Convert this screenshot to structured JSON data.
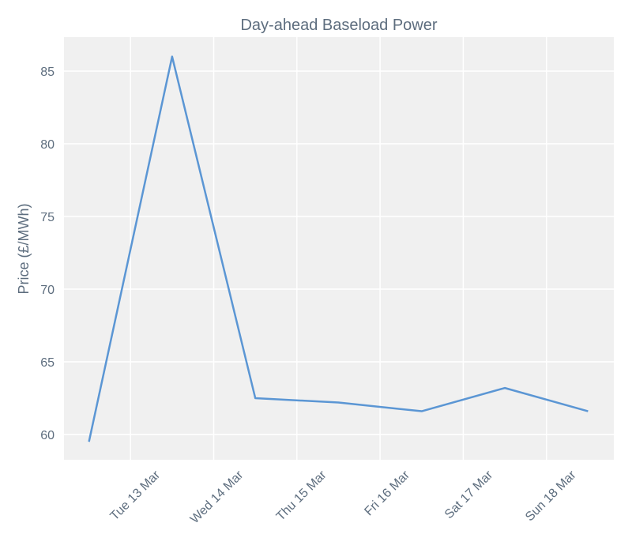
{
  "chart_data": {
    "type": "line",
    "title": "Day-ahead Baseload Power",
    "y_label": "Price (£/MWh)",
    "x": [
      12.5,
      13.5,
      14.5,
      15.5,
      16.5,
      17.5,
      18.5
    ],
    "series": [
      {
        "color": "#5b96d4",
        "values": [
          59.5,
          86.0,
          62.5,
          62.2,
          61.6,
          63.2,
          61.6
        ]
      }
    ],
    "xlim": [
      12.2,
      18.81
    ],
    "xticks": [
      {
        "value": 13,
        "label": "Tue 13 Mar"
      },
      {
        "value": 14,
        "label": "Wed 14 Mar"
      },
      {
        "value": 15,
        "label": "Thu 15 Mar"
      },
      {
        "value": 16,
        "label": "Fri 16 Mar"
      },
      {
        "value": 17,
        "label": "Sat 17 Mar"
      },
      {
        "value": 18,
        "label": "Sun 18 Mar"
      }
    ],
    "ylim": [
      58.26,
      87.34
    ],
    "yticks": [
      60,
      65,
      70,
      75,
      80,
      85
    ],
    "grid": true
  }
}
